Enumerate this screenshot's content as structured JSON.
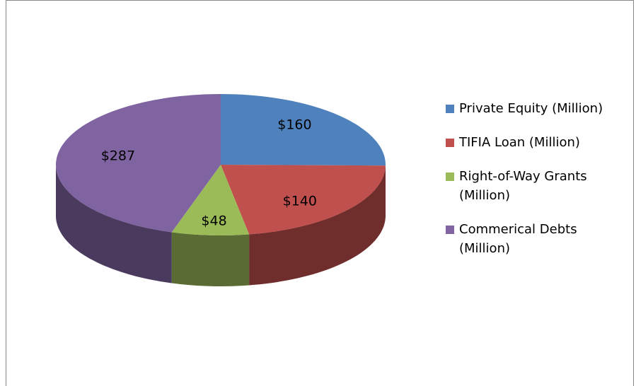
{
  "chart_data": {
    "type": "pie3d",
    "categories": [
      "Private Equity (Million)",
      "TIFIA Loan (Million)",
      "Right-of-Way Grants (Million)",
      "Commerical Debts (Million)"
    ],
    "values": [
      160,
      140,
      48,
      287
    ],
    "value_labels": [
      "$160",
      "$140",
      "$48",
      "$287"
    ],
    "colors": [
      "#4f81bd",
      "#c0504d",
      "#9bbb59",
      "#8064a2"
    ],
    "legend": "right"
  }
}
